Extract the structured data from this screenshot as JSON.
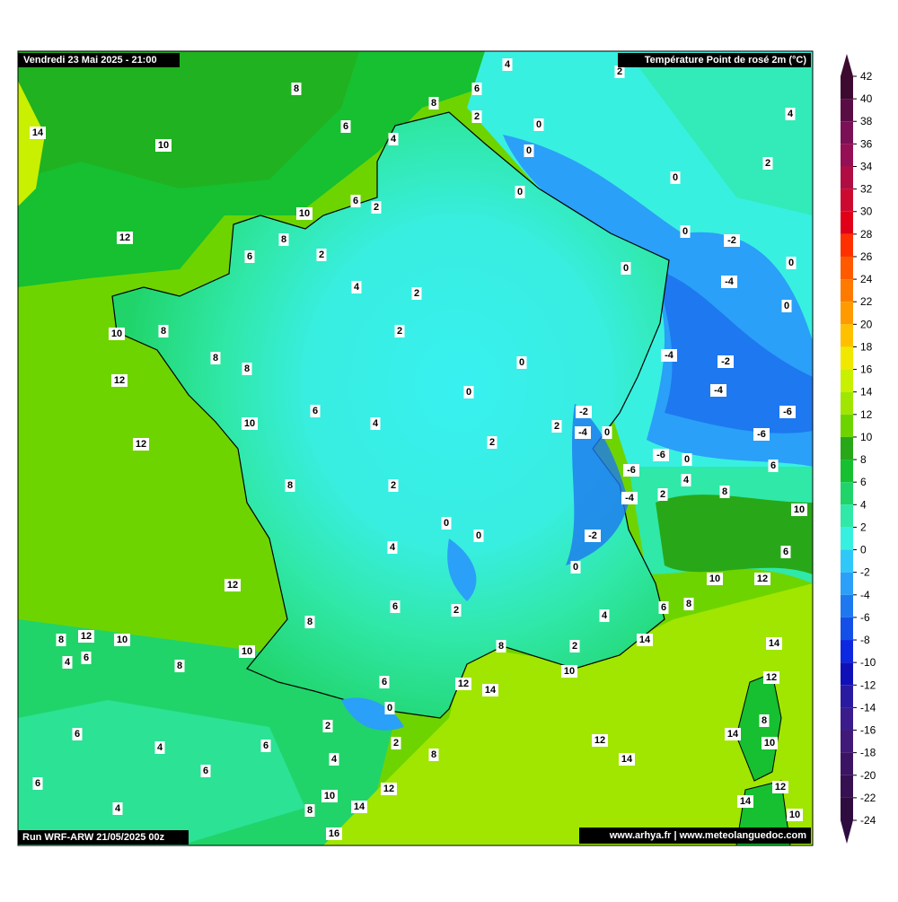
{
  "header": {
    "date": "Vendredi 23 Mai 2025 - 21:00",
    "title": "Température Point de rosé 2m (°C)",
    "run": "Run WRF-ARW 21/05/2025 00z",
    "credit": "www.arhya.fr | www.meteolanguedoc.com"
  },
  "colorbar": {
    "ticks": [
      42,
      40,
      38,
      36,
      34,
      32,
      30,
      28,
      26,
      24,
      22,
      20,
      18,
      16,
      14,
      12,
      10,
      8,
      6,
      4,
      2,
      0,
      -2,
      -4,
      -6,
      -8,
      -10,
      -12,
      -14,
      -16,
      -18,
      -20,
      -22,
      -24
    ],
    "colors": [
      "#3d0a30",
      "#5a0d45",
      "#7a1055",
      "#950f55",
      "#b00d45",
      "#cc0a30",
      "#e00018",
      "#ff3000",
      "#ff5a00",
      "#ff7a00",
      "#ff9a00",
      "#ffc000",
      "#f0e800",
      "#c8f000",
      "#a0e600",
      "#6ed400",
      "#28a818",
      "#16c030",
      "#20d46a",
      "#30e8a8",
      "#38f0e0",
      "#30c8f8",
      "#2aa0f8",
      "#1e78f0",
      "#1450e8",
      "#0c28e0",
      "#1010b8",
      "#2a1aa0",
      "#3a1c8c",
      "#401a78",
      "#3c1464",
      "#361050",
      "#2e0c40"
    ]
  },
  "labels": [
    4,
    2,
    8,
    6,
    8,
    6,
    2,
    0,
    4,
    14,
    4,
    10,
    0,
    2,
    0,
    0,
    6,
    2,
    10,
    0,
    12,
    8,
    -2,
    6,
    2,
    0,
    0,
    -4,
    4,
    2,
    0,
    10,
    8,
    2,
    -4,
    8,
    -2,
    0,
    8,
    12,
    -4,
    0,
    -2,
    -6,
    6,
    2,
    10,
    4,
    -4,
    0,
    -6,
    12,
    2,
    -6,
    0,
    -6,
    6,
    4,
    8,
    2,
    8,
    -4,
    2,
    10,
    0,
    0,
    -2,
    6,
    4,
    0,
    12,
    10,
    12,
    6,
    6,
    8,
    2,
    4,
    8,
    8,
    12,
    10,
    14,
    8,
    14,
    2,
    10,
    4,
    6,
    8,
    10,
    12,
    6,
    12,
    14,
    0,
    2,
    8,
    6,
    14,
    10,
    4,
    6,
    2,
    12,
    8,
    4,
    14,
    6,
    6,
    12,
    10,
    12,
    14,
    4,
    14,
    8,
    10,
    16
  ]
}
